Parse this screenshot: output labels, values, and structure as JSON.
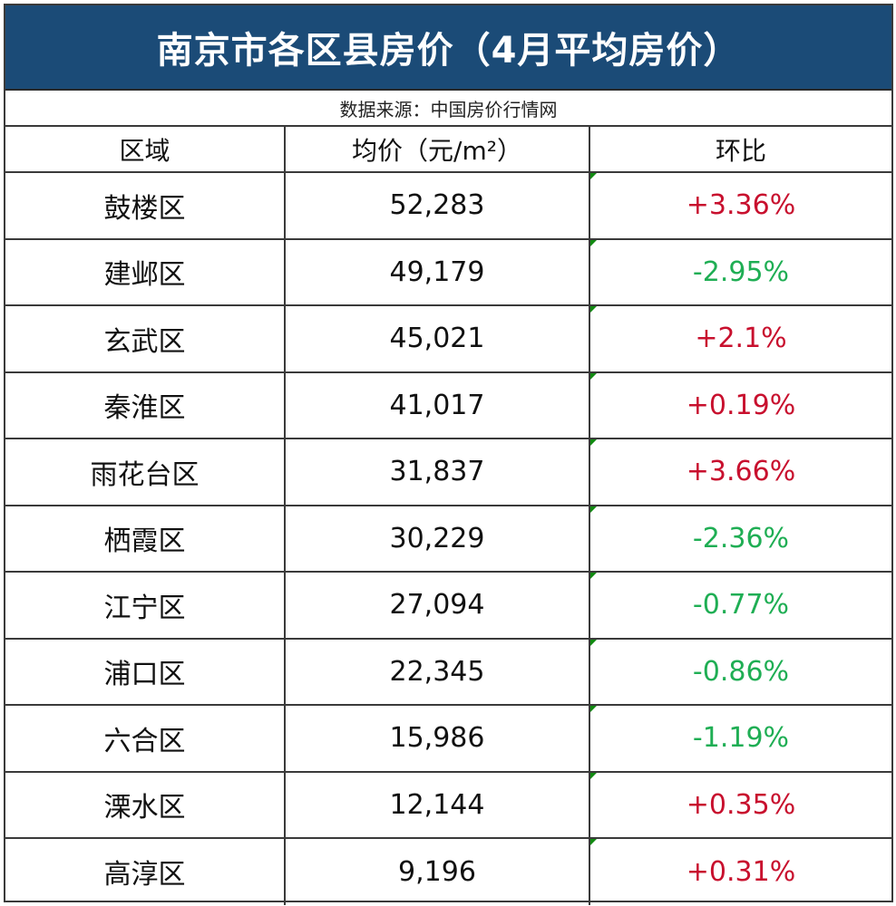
{
  "title": "南京市各区县房价（4月平均房价）",
  "source": "数据来源：中国房价行情网",
  "columns": {
    "district": "区域",
    "price": "均价（元/m²）",
    "change": "环比"
  },
  "colors": {
    "title_bg": "#1b4b77",
    "increase": "#c8102e",
    "decrease": "#1fae54",
    "cell_flag": "#118a11"
  },
  "rows": [
    {
      "district": "鼓楼区",
      "price": "52,283",
      "change": "+3.36%",
      "trend": "up"
    },
    {
      "district": "建邺区",
      "price": "49,179",
      "change": "-2.95%",
      "trend": "down"
    },
    {
      "district": "玄武区",
      "price": "45,021",
      "change": "+2.1%",
      "trend": "up"
    },
    {
      "district": "秦淮区",
      "price": "41,017",
      "change": "+0.19%",
      "trend": "up"
    },
    {
      "district": "雨花台区",
      "price": "31,837",
      "change": "+3.66%",
      "trend": "up"
    },
    {
      "district": "栖霞区",
      "price": "30,229",
      "change": "-2.36%",
      "trend": "down"
    },
    {
      "district": "江宁区",
      "price": "27,094",
      "change": "-0.77%",
      "trend": "down"
    },
    {
      "district": "浦口区",
      "price": "22,345",
      "change": "-0.86%",
      "trend": "down"
    },
    {
      "district": "六合区",
      "price": "15,986",
      "change": "-1.19%",
      "trend": "down"
    },
    {
      "district": "溧水区",
      "price": "12,144",
      "change": "+0.35%",
      "trend": "up"
    },
    {
      "district": "高淳区",
      "price": "9,196",
      "change": "+0.31%",
      "trend": "up"
    }
  ]
}
